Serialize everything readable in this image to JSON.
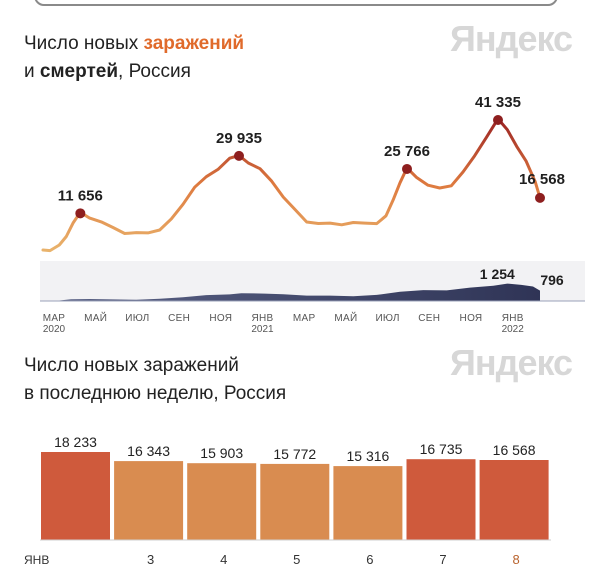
{
  "brand": "Яндекс",
  "colors": {
    "accent": "#e06a2b",
    "dark_marker": "#8e1f1f",
    "deaths": "#3b3f63",
    "bar_orange": "#d98c50",
    "bar_red": "#cf5a3c",
    "day8": "#b9632e"
  },
  "chart_data": [
    {
      "type": "line",
      "title_parts": [
        "Число новых ",
        "заражений",
        "и ",
        "смертей",
        ", Россия"
      ],
      "x_ticks": [
        "МАР",
        "МАЙ",
        "ИЮЛ",
        "СЕН",
        "НОЯ",
        "ЯНВ",
        "МАР",
        "МАЙ",
        "ИЮЛ",
        "СЕН",
        "НОЯ",
        "ЯНВ"
      ],
      "x_tick_years": [
        "2020",
        "",
        "",
        "",
        "",
        "2021",
        "",
        "",
        "",
        "",
        "",
        "2022"
      ],
      "series": [
        {
          "key": "cases",
          "points": [
            [
              0,
              0
            ],
            [
              0.3,
              100
            ],
            [
              0.7,
              1200
            ],
            [
              1.0,
              4500
            ],
            [
              1.3,
              8800
            ],
            [
              1.6,
              11656
            ],
            [
              2.0,
              10500
            ],
            [
              2.5,
              8800
            ],
            [
              3.0,
              7000
            ],
            [
              3.5,
              5600
            ],
            [
              4.0,
              5200
            ],
            [
              4.5,
              5500
            ],
            [
              5.0,
              6600
            ],
            [
              5.5,
              9500
            ],
            [
              6.0,
              14800
            ],
            [
              6.5,
              20000
            ],
            [
              7.0,
              23000
            ],
            [
              7.5,
              26000
            ],
            [
              8.0,
              29000
            ],
            [
              8.4,
              29935
            ],
            [
              8.8,
              28000
            ],
            [
              9.3,
              25500
            ],
            [
              9.8,
              22000
            ],
            [
              10.3,
              17000
            ],
            [
              10.8,
              12500
            ],
            [
              11.3,
              9200
            ],
            [
              11.8,
              8400
            ],
            [
              12.3,
              8300
            ],
            [
              12.8,
              8400
            ],
            [
              13.3,
              8500
            ],
            [
              13.8,
              8500
            ],
            [
              14.3,
              8700
            ],
            [
              14.7,
              10500
            ],
            [
              15.0,
              16000
            ],
            [
              15.3,
              21500
            ],
            [
              15.6,
              25766
            ],
            [
              16.0,
              23500
            ],
            [
              16.5,
              20500
            ],
            [
              17.0,
              19500
            ],
            [
              17.5,
              20800
            ],
            [
              18.0,
              24500
            ],
            [
              18.5,
              30000
            ],
            [
              19.0,
              36000
            ],
            [
              19.5,
              41335
            ],
            [
              19.9,
              38500
            ],
            [
              20.3,
              33000
            ],
            [
              20.7,
              28000
            ],
            [
              21.1,
              22000
            ],
            [
              21.3,
              16568
            ]
          ],
          "peak_labels": [
            [
              1.6,
              11656,
              "11 656"
            ],
            [
              8.4,
              29935,
              "29 935"
            ],
            [
              15.6,
              25766,
              "25 766"
            ],
            [
              19.5,
              41335,
              "41 335"
            ],
            [
              21.3,
              16568,
              "16 568"
            ]
          ]
        },
        {
          "key": "deaths",
          "points": [
            [
              0,
              0
            ],
            [
              0.6,
              20
            ],
            [
              1.2,
              120
            ],
            [
              2.0,
              150
            ],
            [
              3.0,
              110
            ],
            [
              4.0,
              100
            ],
            [
              5.0,
              160
            ],
            [
              6.0,
              280
            ],
            [
              7.0,
              420
            ],
            [
              8.0,
              500
            ],
            [
              8.5,
              560
            ],
            [
              9.5,
              560
            ],
            [
              10.3,
              480
            ],
            [
              11.3,
              420
            ],
            [
              12.3,
              380
            ],
            [
              13.3,
              370
            ],
            [
              14.3,
              430
            ],
            [
              15.3,
              700
            ],
            [
              16.3,
              780
            ],
            [
              17.3,
              810
            ],
            [
              18.3,
              960
            ],
            [
              19.3,
              1150
            ],
            [
              19.9,
              1254
            ],
            [
              20.5,
              1220
            ],
            [
              21.0,
              1040
            ],
            [
              21.3,
              796
            ]
          ],
          "peak_labels": [
            [
              19.9,
              1254,
              "1 254"
            ],
            [
              21.3,
              796,
              "796"
            ]
          ]
        }
      ],
      "ylim_cases": [
        0,
        41335
      ],
      "ylim_deaths": [
        0,
        1254
      ]
    },
    {
      "type": "bar",
      "title_lines": [
        "Число новых заражений",
        "в последнюю неделю, Россия"
      ],
      "categories": [
        "ЯНВ",
        "3",
        "4",
        "5",
        "6",
        "7",
        "8"
      ],
      "values": [
        18233,
        16343,
        15903,
        15772,
        15316,
        16735,
        16568
      ],
      "value_labels": [
        "18 233",
        "16 343",
        "15 903",
        "15 772",
        "15 316",
        "16 735",
        "16 568"
      ],
      "highlighted": [
        true,
        false,
        false,
        false,
        false,
        true,
        true
      ],
      "ylim": [
        0,
        18233
      ]
    }
  ]
}
